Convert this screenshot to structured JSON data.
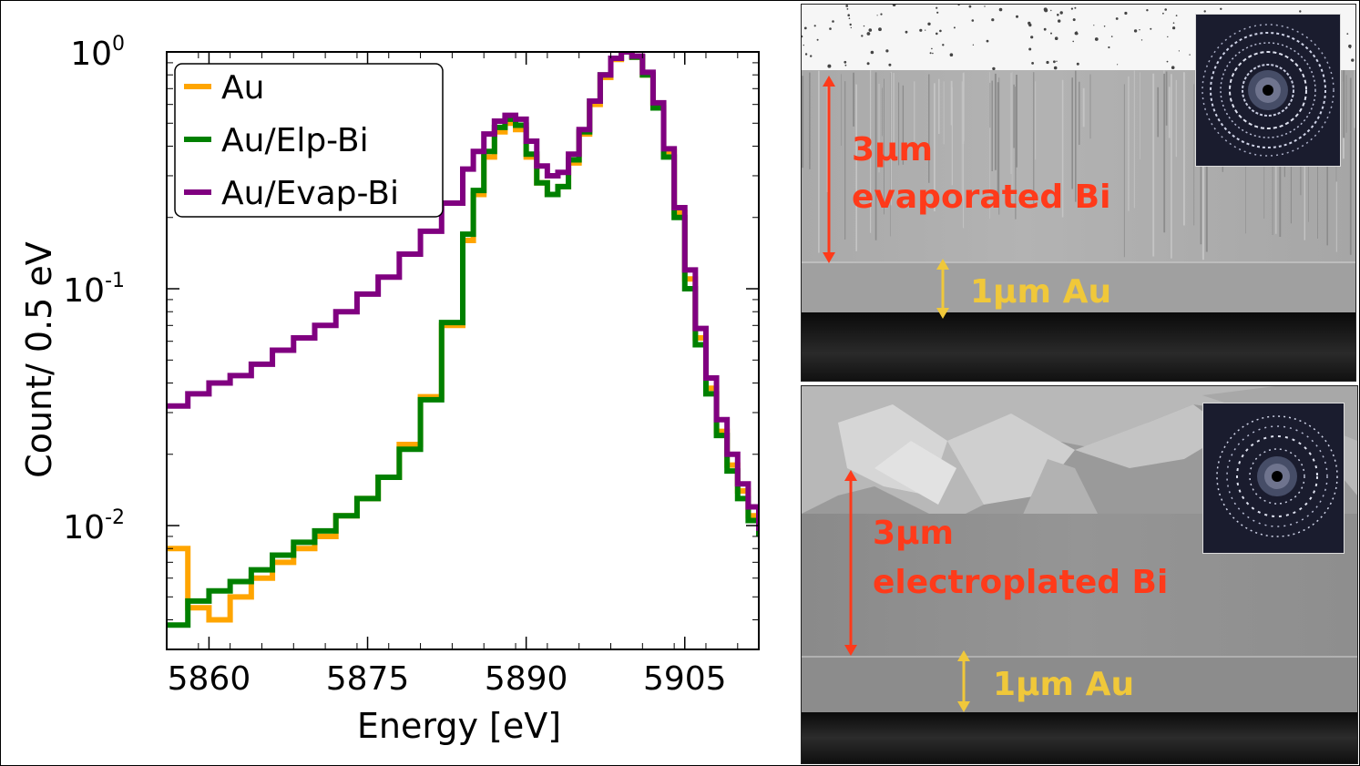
{
  "chart_data": {
    "type": "line",
    "xlabel": "Energy [eV]",
    "ylabel": "Count/ 0.5 eV",
    "xlim": [
      5856,
      5912
    ],
    "ylim": [
      0.003,
      1.0
    ],
    "yscale": "log",
    "xticks": [
      5860,
      5875,
      5890,
      5905
    ],
    "yticks": [
      {
        "value": 0.01,
        "base": "10",
        "exp": "-2"
      },
      {
        "value": 0.1,
        "base": "10",
        "exp": "-1"
      },
      {
        "value": 1.0,
        "base": "10",
        "exp": "0"
      }
    ],
    "legend_position": "top-left",
    "series": [
      {
        "name": "Au",
        "color": "#ffa500",
        "x": [
          5856,
          5858,
          5860,
          5862,
          5864,
          5866,
          5868,
          5870,
          5872,
          5874,
          5876,
          5878,
          5880,
          5882,
          5884,
          5885,
          5886,
          5887,
          5888,
          5889,
          5890,
          5891,
          5892,
          5893,
          5894,
          5895,
          5896,
          5897,
          5898,
          5899,
          5900,
          5901,
          5902,
          5903,
          5904,
          5905,
          5906,
          5907,
          5908,
          5909,
          5910,
          5911,
          5912
        ],
        "y": [
          0.008,
          0.0045,
          0.004,
          0.005,
          0.006,
          0.007,
          0.008,
          0.009,
          0.011,
          0.013,
          0.016,
          0.022,
          0.035,
          0.07,
          0.16,
          0.25,
          0.36,
          0.46,
          0.5,
          0.47,
          0.36,
          0.28,
          0.25,
          0.27,
          0.34,
          0.45,
          0.6,
          0.78,
          0.93,
          1.0,
          0.95,
          0.8,
          0.6,
          0.38,
          0.21,
          0.11,
          0.062,
          0.038,
          0.025,
          0.018,
          0.014,
          0.011,
          0.009
        ]
      },
      {
        "name": "Au/Elp-Bi",
        "color": "#008000",
        "x": [
          5856,
          5858,
          5860,
          5862,
          5864,
          5866,
          5868,
          5870,
          5872,
          5874,
          5876,
          5878,
          5880,
          5882,
          5884,
          5885,
          5886,
          5887,
          5888,
          5889,
          5890,
          5891,
          5892,
          5893,
          5894,
          5895,
          5896,
          5897,
          5898,
          5899,
          5900,
          5901,
          5902,
          5903,
          5904,
          5905,
          5906,
          5907,
          5908,
          5909,
          5910,
          5911,
          5912
        ],
        "y": [
          0.0038,
          0.0048,
          0.0053,
          0.0058,
          0.0065,
          0.0075,
          0.0085,
          0.0095,
          0.011,
          0.013,
          0.016,
          0.021,
          0.034,
          0.072,
          0.17,
          0.26,
          0.38,
          0.48,
          0.52,
          0.49,
          0.37,
          0.28,
          0.25,
          0.27,
          0.35,
          0.46,
          0.62,
          0.8,
          0.94,
          1.0,
          0.95,
          0.8,
          0.58,
          0.36,
          0.2,
          0.1,
          0.058,
          0.036,
          0.024,
          0.017,
          0.013,
          0.0105,
          0.009
        ]
      },
      {
        "name": "Au/Evap-Bi",
        "color": "#800080",
        "x": [
          5856,
          5858,
          5860,
          5862,
          5864,
          5866,
          5868,
          5870,
          5872,
          5874,
          5876,
          5878,
          5880,
          5882,
          5884,
          5885,
          5886,
          5887,
          5888,
          5889,
          5890,
          5891,
          5892,
          5893,
          5894,
          5895,
          5896,
          5897,
          5898,
          5899,
          5900,
          5901,
          5902,
          5903,
          5904,
          5905,
          5906,
          5907,
          5908,
          5909,
          5910,
          5911,
          5912
        ],
        "y": [
          0.032,
          0.036,
          0.04,
          0.043,
          0.048,
          0.055,
          0.062,
          0.07,
          0.08,
          0.095,
          0.112,
          0.14,
          0.175,
          0.23,
          0.32,
          0.38,
          0.45,
          0.51,
          0.54,
          0.52,
          0.42,
          0.33,
          0.3,
          0.31,
          0.37,
          0.47,
          0.62,
          0.8,
          0.94,
          1.0,
          0.96,
          0.82,
          0.61,
          0.39,
          0.22,
          0.12,
          0.068,
          0.042,
          0.028,
          0.02,
          0.015,
          0.012,
          0.0095
        ]
      }
    ]
  },
  "sem_panels": [
    {
      "thickness_label": "3µm",
      "material_label": "evaporated Bi",
      "au_label": "1µm Au"
    },
    {
      "thickness_label": "3µm",
      "material_label": "electroplated Bi",
      "au_label": "1µm Au"
    }
  ],
  "colors": {
    "label_red": "#ff3a1a",
    "label_gold": "#f0c83a"
  }
}
